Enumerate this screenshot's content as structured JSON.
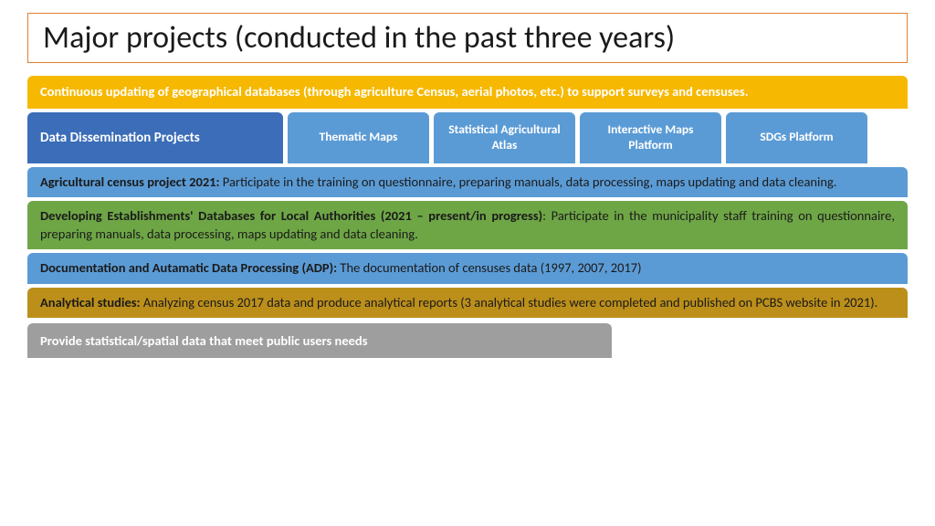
{
  "title": "Major projects (conducted in the past three years)",
  "bar_yellow": "Continuous updating of geographical databases (through agriculture Census, aerial photos, etc.) to support surveys and censuses.",
  "tabs": {
    "main": "Data Dissemination Projects",
    "sub": [
      "Thematic Maps",
      "Statistical Agricultural Atlas",
      "Interactive Maps Platform",
      "SDGs Platform"
    ]
  },
  "block1_bold": "Agricultural census project 2021:",
  "block1_rest": " Participate in the training on questionnaire, preparing manuals, data processing, maps updating and data cleaning.",
  "block2_bold": "Developing Establishments' Databases for Local Authorities (2021 – present/in progress)",
  "block2_rest": ": Participate in the municipality staff training on questionnaire, preparing manuals, data processing, maps updating and data cleaning.",
  "block3_bold": "Documentation and Autamatic Data Processing (ADP):",
  "block3_rest": " The documentation of censuses data (1997, 2007, 2017)",
  "block4_bold": "Analytical studies:",
  "block4_rest": " Analyzing census 2017 data and produce analytical reports (3 analytical studies were completed and published on PCBS website in 2021).",
  "block_gray": "Provide statistical/spatial data that meet public users needs",
  "colors": {
    "title_border": "#e08030",
    "yellow": "#f6b800",
    "dark_blue": "#3b6db8",
    "light_blue": "#5b9bd5",
    "green": "#6ea646",
    "olive": "#bc8f1a",
    "gray": "#9e9e9e"
  }
}
